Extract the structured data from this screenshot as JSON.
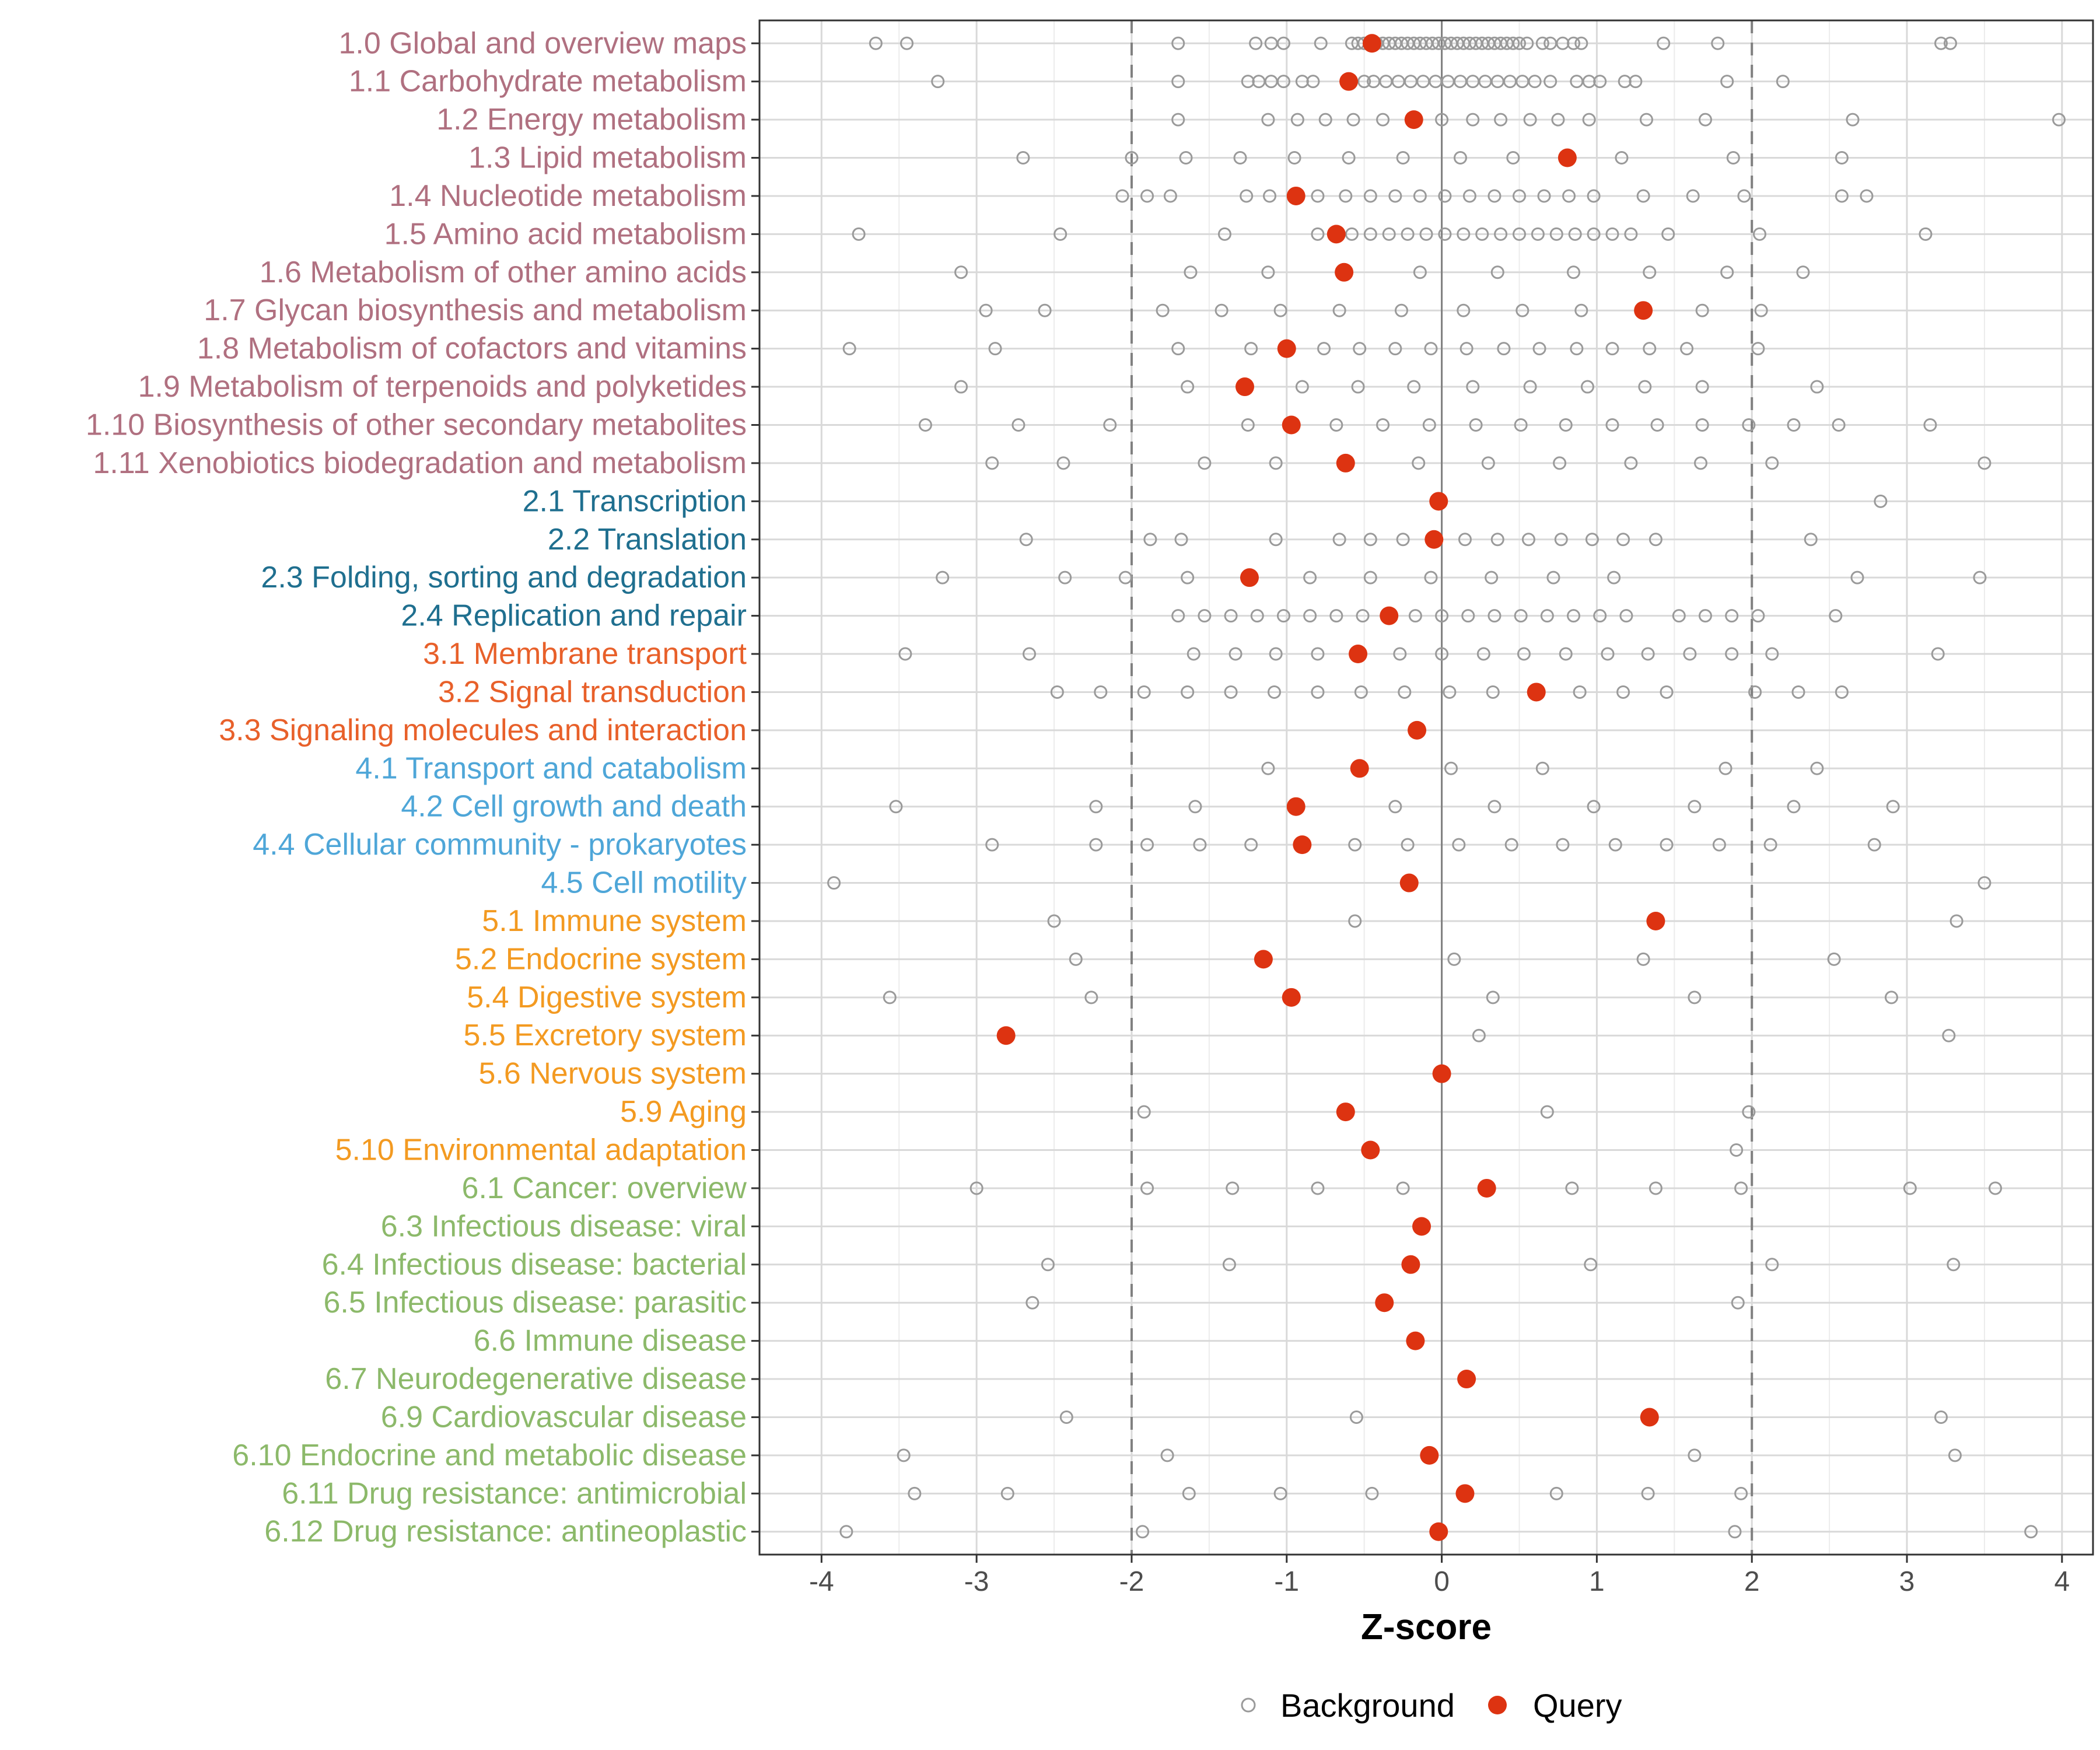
{
  "chart_data": {
    "type": "dot",
    "xlabel": "Z-score",
    "xlim": [
      -4.4,
      4.2
    ],
    "xticks": [
      -4,
      -3,
      -2,
      -1,
      0,
      1,
      2,
      3,
      4
    ],
    "vlines_dashed": [
      -2,
      2
    ],
    "vline_solid": 0,
    "legend": [
      "Background",
      "Query"
    ],
    "colors": {
      "group1": "#b07080",
      "group2": "#1f6f8f",
      "group3": "#e8602a",
      "group4": "#4ea6d8",
      "group5": "#f39a21",
      "group6": "#8cb96a",
      "query": "#dd3311",
      "background": "#9a9a9a",
      "grid": "#d9d9d9",
      "dashed": "#808080",
      "zero": "#808080"
    },
    "categories": [
      {
        "label": "1.0 Global and overview maps",
        "group": "group1",
        "query": -0.45,
        "background": [
          -3.65,
          -3.45,
          -1.7,
          -1.2,
          -1.1,
          -1.02,
          -0.78,
          -0.58,
          -0.54,
          -0.5,
          -0.46,
          -0.42,
          -0.38,
          -0.34,
          -0.3,
          -0.26,
          -0.22,
          -0.18,
          -0.14,
          -0.1,
          -0.06,
          -0.02,
          0.02,
          0.06,
          0.1,
          0.14,
          0.18,
          0.22,
          0.26,
          0.3,
          0.34,
          0.38,
          0.42,
          0.46,
          0.5,
          0.55,
          0.65,
          0.7,
          0.78,
          0.85,
          0.9,
          1.43,
          1.78,
          3.22,
          3.28
        ]
      },
      {
        "label": "1.1 Carbohydrate metabolism",
        "group": "group1",
        "query": -0.6,
        "background": [
          -3.25,
          -1.7,
          -1.25,
          -1.18,
          -1.1,
          -1.02,
          -0.9,
          -0.83,
          -0.5,
          -0.44,
          -0.36,
          -0.28,
          -0.2,
          -0.12,
          -0.04,
          0.04,
          0.12,
          0.2,
          0.28,
          0.36,
          0.44,
          0.52,
          0.6,
          0.7,
          0.87,
          0.95,
          1.02,
          1.18,
          1.25,
          1.84,
          2.2
        ]
      },
      {
        "label": "1.2 Energy metabolism",
        "group": "group1",
        "query": -0.18,
        "background": [
          -1.7,
          -1.12,
          -0.93,
          -0.75,
          -0.57,
          -0.38,
          0.0,
          0.2,
          0.38,
          0.57,
          0.75,
          0.95,
          1.32,
          1.7,
          2.65,
          3.98
        ]
      },
      {
        "label": "1.3 Lipid metabolism",
        "group": "group1",
        "query": 0.81,
        "background": [
          -2.7,
          -2.0,
          -1.65,
          -1.3,
          -0.95,
          -0.6,
          -0.25,
          0.12,
          0.46,
          1.16,
          1.88,
          2.58
        ]
      },
      {
        "label": "1.4 Nucleotide metabolism",
        "group": "group1",
        "query": -0.94,
        "background": [
          -2.06,
          -1.9,
          -1.75,
          -1.26,
          -1.11,
          -0.8,
          -0.62,
          -0.46,
          -0.3,
          -0.14,
          0.02,
          0.18,
          0.34,
          0.5,
          0.66,
          0.82,
          0.98,
          1.3,
          1.62,
          1.95,
          2.58,
          2.74
        ]
      },
      {
        "label": "1.5 Amino acid metabolism",
        "group": "group1",
        "query": -0.68,
        "background": [
          -3.76,
          -2.46,
          -1.4,
          -0.8,
          -0.58,
          -0.46,
          -0.34,
          -0.22,
          -0.1,
          0.02,
          0.14,
          0.26,
          0.38,
          0.5,
          0.62,
          0.74,
          0.86,
          0.98,
          1.1,
          1.22,
          1.46,
          2.05,
          3.12
        ]
      },
      {
        "label": "1.6 Metabolism of other amino acids",
        "group": "group1",
        "query": -0.63,
        "background": [
          -3.1,
          -1.62,
          -1.12,
          -0.14,
          0.36,
          0.85,
          1.34,
          1.84,
          2.33
        ]
      },
      {
        "label": "1.7 Glycan biosynthesis and metabolism",
        "group": "group1",
        "query": 1.3,
        "background": [
          -2.94,
          -2.56,
          -1.8,
          -1.42,
          -1.04,
          -0.66,
          -0.26,
          0.14,
          0.52,
          0.9,
          1.68,
          2.06
        ]
      },
      {
        "label": "1.8 Metabolism of cofactors and vitamins",
        "group": "group1",
        "query": -1.0,
        "background": [
          -3.82,
          -2.88,
          -1.7,
          -1.23,
          -0.76,
          -0.53,
          -0.3,
          -0.07,
          0.16,
          0.4,
          0.63,
          0.87,
          1.1,
          1.34,
          1.58,
          2.04
        ]
      },
      {
        "label": "1.9 Metabolism of terpenoids and polyketides",
        "group": "group1",
        "query": -1.27,
        "background": [
          -3.1,
          -1.64,
          -0.9,
          -0.54,
          -0.18,
          0.2,
          0.57,
          0.94,
          1.31,
          1.68,
          2.42
        ]
      },
      {
        "label": "1.10 Biosynthesis of other secondary metabolites",
        "group": "group1",
        "query": -0.97,
        "background": [
          -3.33,
          -2.73,
          -2.14,
          -1.25,
          -0.68,
          -0.38,
          -0.08,
          0.22,
          0.51,
          0.8,
          1.1,
          1.39,
          1.68,
          1.98,
          2.27,
          2.56,
          3.15
        ]
      },
      {
        "label": "1.11 Xenobiotics biodegradation and metabolism",
        "group": "group1",
        "query": -0.62,
        "background": [
          -2.9,
          -2.44,
          -1.53,
          -1.07,
          -0.15,
          0.3,
          0.76,
          1.22,
          1.67,
          2.13,
          3.5
        ]
      },
      {
        "label": "2.1 Transcription",
        "group": "group2",
        "query": -0.02,
        "background": [
          2.83
        ]
      },
      {
        "label": "2.2 Translation",
        "group": "group2",
        "query": -0.05,
        "background": [
          -2.68,
          -1.88,
          -1.68,
          -1.07,
          -0.66,
          -0.46,
          -0.25,
          0.15,
          0.36,
          0.56,
          0.77,
          0.97,
          1.17,
          1.38,
          2.38
        ]
      },
      {
        "label": "2.3 Folding, sorting and degradation",
        "group": "group2",
        "query": -1.24,
        "background": [
          -3.22,
          -2.43,
          -2.04,
          -1.64,
          -0.85,
          -0.46,
          -0.07,
          0.32,
          0.72,
          1.11,
          2.68,
          3.47
        ]
      },
      {
        "label": "2.4 Replication and repair",
        "group": "group2",
        "query": -0.34,
        "background": [
          -1.7,
          -1.53,
          -1.36,
          -1.19,
          -1.02,
          -0.85,
          -0.68,
          -0.51,
          -0.17,
          0.0,
          0.17,
          0.34,
          0.51,
          0.68,
          0.85,
          1.02,
          1.19,
          1.53,
          1.7,
          1.87,
          2.04,
          2.54
        ]
      },
      {
        "label": "3.1 Membrane transport",
        "group": "group3",
        "query": -0.54,
        "background": [
          -3.46,
          -2.66,
          -1.6,
          -1.33,
          -1.07,
          -0.8,
          -0.27,
          0.0,
          0.27,
          0.53,
          0.8,
          1.07,
          1.33,
          1.6,
          1.87,
          2.13,
          3.2
        ]
      },
      {
        "label": "3.2 Signal transduction",
        "group": "group3",
        "query": 0.61,
        "background": [
          -2.48,
          -2.2,
          -1.92,
          -1.64,
          -1.36,
          -1.08,
          -0.8,
          -0.52,
          -0.24,
          0.05,
          0.33,
          0.61,
          0.89,
          1.17,
          1.45,
          2.02,
          2.3,
          2.58
        ]
      },
      {
        "label": "3.3 Signaling molecules and interaction",
        "group": "group3",
        "query": -0.16,
        "background": []
      },
      {
        "label": "4.1 Transport and catabolism",
        "group": "group4",
        "query": -0.53,
        "background": [
          -1.12,
          0.06,
          0.65,
          1.83,
          2.42
        ]
      },
      {
        "label": "4.2 Cell growth and death",
        "group": "group4",
        "query": -0.94,
        "background": [
          -3.52,
          -2.23,
          -1.59,
          -0.3,
          0.34,
          0.98,
          1.63,
          2.27,
          2.91
        ]
      },
      {
        "label": "4.4 Cellular community - prokaryotes",
        "group": "group4",
        "query": -0.9,
        "background": [
          -2.9,
          -2.23,
          -1.9,
          -1.56,
          -1.23,
          -0.56,
          -0.22,
          0.11,
          0.45,
          0.78,
          1.12,
          1.45,
          1.79,
          2.12,
          2.79
        ]
      },
      {
        "label": "4.5 Cell motility",
        "group": "group4",
        "query": -0.21,
        "background": [
          -3.92,
          3.5
        ]
      },
      {
        "label": "5.1 Immune system",
        "group": "group5",
        "query": 1.38,
        "background": [
          -2.5,
          -0.56,
          3.32
        ]
      },
      {
        "label": "5.2 Endocrine system",
        "group": "group5",
        "query": -1.15,
        "background": [
          -2.36,
          0.08,
          1.3,
          2.53
        ]
      },
      {
        "label": "5.4 Digestive system",
        "group": "group5",
        "query": -0.97,
        "background": [
          -3.56,
          -2.26,
          0.33,
          1.63,
          2.9
        ]
      },
      {
        "label": "5.5 Excretory system",
        "group": "group5",
        "query": -2.81,
        "background": [
          0.24,
          3.27
        ]
      },
      {
        "label": "5.6 Nervous system",
        "group": "group5",
        "query": 0.0,
        "background": []
      },
      {
        "label": "5.9 Aging",
        "group": "group5",
        "query": -0.62,
        "background": [
          -1.92,
          0.68,
          1.98
        ]
      },
      {
        "label": "5.10 Environmental adaptation",
        "group": "group5",
        "query": -0.46,
        "background": [
          1.9
        ]
      },
      {
        "label": "6.1 Cancer: overview",
        "group": "group6",
        "query": 0.29,
        "background": [
          -3.0,
          -1.9,
          -1.35,
          -0.8,
          -0.25,
          0.84,
          1.38,
          1.93,
          3.02,
          3.57
        ]
      },
      {
        "label": "6.3 Infectious disease: viral",
        "group": "group6",
        "query": -0.13,
        "background": []
      },
      {
        "label": "6.4 Infectious disease: bacterial",
        "group": "group6",
        "query": -0.2,
        "background": [
          -2.54,
          -1.37,
          0.96,
          2.13,
          3.3
        ]
      },
      {
        "label": "6.5 Infectious disease: parasitic",
        "group": "group6",
        "query": -0.37,
        "background": [
          -2.64,
          1.91
        ]
      },
      {
        "label": "6.6 Immune disease",
        "group": "group6",
        "query": -0.17,
        "background": []
      },
      {
        "label": "6.7 Neurodegenerative disease",
        "group": "group6",
        "query": 0.16,
        "background": []
      },
      {
        "label": "6.9 Cardiovascular disease",
        "group": "group6",
        "query": 1.34,
        "background": [
          -2.42,
          -0.55,
          3.22
        ]
      },
      {
        "label": "6.10 Endocrine and metabolic disease",
        "group": "group6",
        "query": -0.08,
        "background": [
          -3.47,
          -1.77,
          1.63,
          3.31
        ]
      },
      {
        "label": "6.11 Drug resistance: antimicrobial",
        "group": "group6",
        "query": 0.15,
        "background": [
          -3.4,
          -2.8,
          -1.63,
          -1.04,
          -0.45,
          0.74,
          1.33,
          1.93
        ]
      },
      {
        "label": "6.12 Drug resistance: antineoplastic",
        "group": "group6",
        "query": -0.02,
        "background": [
          -3.84,
          -1.93,
          1.89,
          3.8
        ]
      }
    ]
  }
}
